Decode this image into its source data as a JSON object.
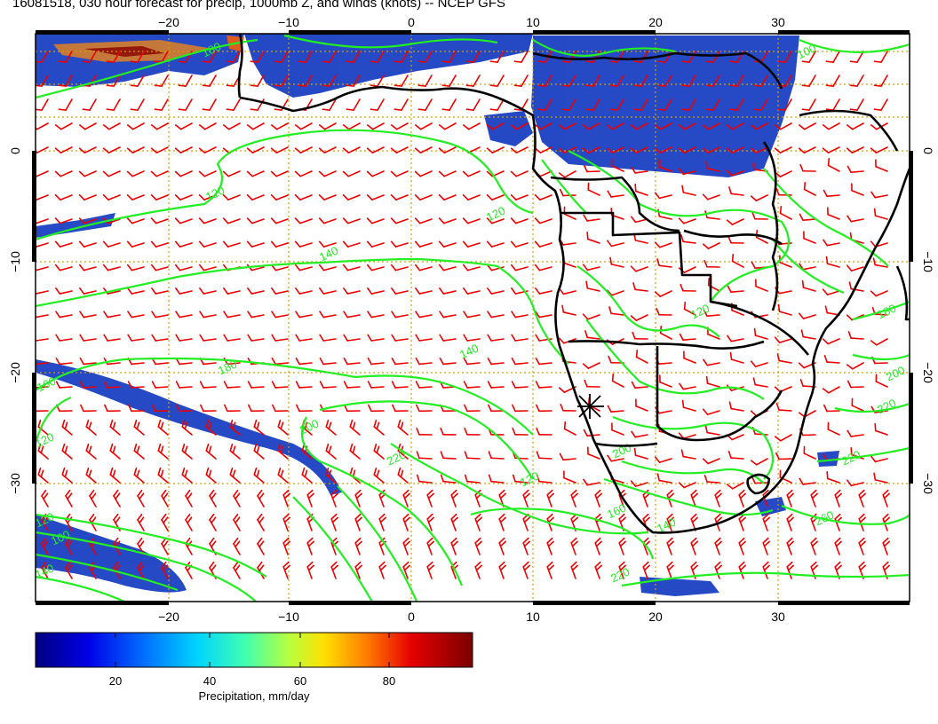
{
  "title": "16081518, 030 hour forecast for precip, 1000mb Z, and winds (knots) -- NCEP GFS",
  "map": {
    "lon_labels": [
      "−20",
      "−10",
      "0",
      "10",
      "20",
      "30"
    ],
    "lat_labels": [
      "0",
      "−10",
      "−20",
      "−30"
    ],
    "colors": {
      "ocean_land": "#ffffff",
      "contour": "#22ee22",
      "wind_barb": "#ee0000",
      "coastline": "#000000",
      "grid": "#d4a000",
      "precip_light": "#1a3fc2",
      "precip_heavy": "#8b0000"
    },
    "contour_labels": [
      "100",
      "120",
      "140",
      "160",
      "180",
      "200",
      "220",
      "240",
      "260"
    ]
  },
  "colorbar": {
    "ticks": [
      "20",
      "40",
      "60",
      "80"
    ],
    "label": "Precipitation, mm/day",
    "min": 0,
    "max": 100
  }
}
